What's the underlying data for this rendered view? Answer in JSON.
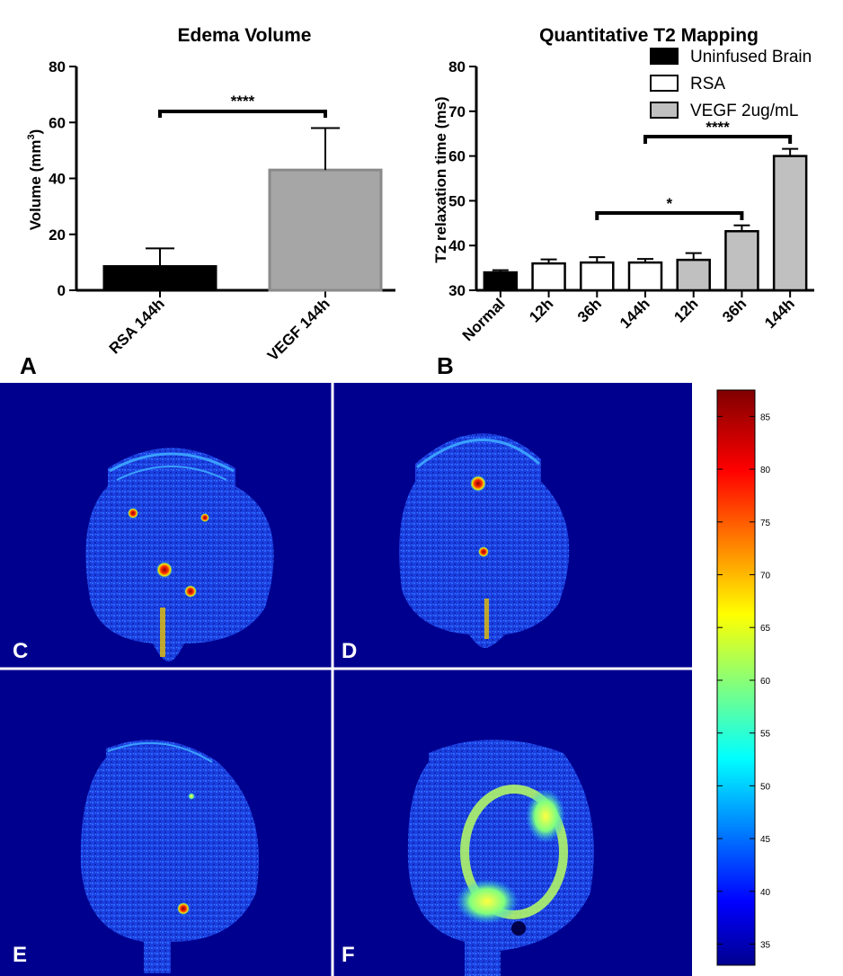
{
  "chart_data": [
    {
      "type": "bar",
      "title": "Edema Volume",
      "ylabel_prefix": "Volume (mm",
      "ylabel_sup": "3",
      "ylabel_suffix": ")",
      "ylim": [
        0,
        80
      ],
      "yticks": [
        "0",
        "20",
        "40",
        "60",
        "80"
      ],
      "categories": [
        "RSA 144h",
        "VEGF 144h"
      ],
      "values": [
        8.5,
        43
      ],
      "errors": [
        6.5,
        15
      ],
      "colors": [
        "#000000",
        "#a6a6a6"
      ],
      "significance": [
        {
          "from": 0,
          "to": 1,
          "label": "****"
        }
      ]
    },
    {
      "type": "bar",
      "title": "Quantitative T2 Mapping",
      "ylabel": "T2 relaxation time (ms)",
      "ylim": [
        30,
        80
      ],
      "yticks": [
        "30",
        "40",
        "50",
        "60",
        "70",
        "80"
      ],
      "categories": [
        "Normal",
        "12h",
        "36h",
        "144h",
        "12h",
        "36h",
        "144h"
      ],
      "groups": [
        0,
        1,
        1,
        1,
        2,
        2,
        2
      ],
      "values": [
        34,
        36,
        36.2,
        36.2,
        36.8,
        43.2,
        60
      ],
      "errors": [
        0.5,
        0.9,
        1.2,
        0.8,
        1.5,
        1.3,
        1.6
      ],
      "legend": [
        {
          "label": "Uninfused Brain",
          "color": "#000000"
        },
        {
          "label": "RSA",
          "color": "#ffffff"
        },
        {
          "label": "VEGF 2ug/mL",
          "color": "#c0c0c0"
        }
      ],
      "legend_position": "top-right",
      "significance": [
        {
          "from": 2,
          "to": 5,
          "label": "*"
        },
        {
          "from": 3,
          "to": 6,
          "label": "****"
        }
      ]
    }
  ],
  "panels": {
    "a": "A",
    "b": "B",
    "c": "C",
    "d": "D",
    "e": "E",
    "f": "F"
  },
  "colorbar": {
    "min": 33,
    "max": 87.5,
    "ticks": [
      "35",
      "40",
      "45",
      "50",
      "55",
      "60",
      "65",
      "70",
      "75",
      "80",
      "85"
    ]
  },
  "colors": {
    "mri_background": "#00008f",
    "divider": "#ffffff"
  }
}
